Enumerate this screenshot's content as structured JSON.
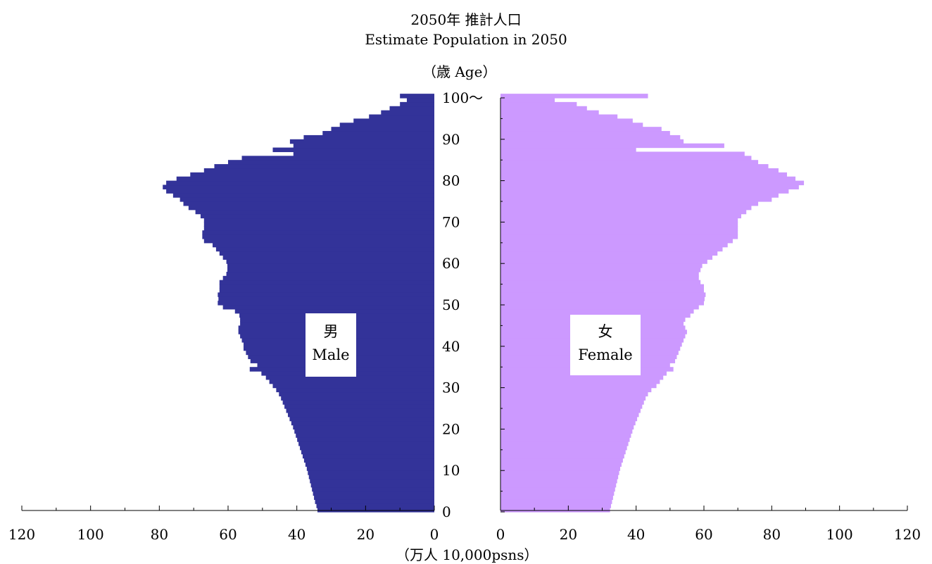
{
  "title": "2050年  推計人口",
  "subtitle": "Estimate Population in 2050",
  "age_axis_label": "（歳  Age）",
  "x_axis_label": "（万人  10,000psns）",
  "male_label_ja": "男",
  "male_label_en": "Male",
  "female_label_ja": "女",
  "female_label_en": "Female",
  "colors": {
    "male": "#333399",
    "female": "#cc99ff",
    "axis": "#000000"
  },
  "chart_data": {
    "type": "bar",
    "orientation": "horizontal-pyramid",
    "age_ticks": [
      "0",
      "10",
      "20",
      "30",
      "40",
      "50",
      "60",
      "70",
      "80",
      "90",
      "100〜"
    ],
    "x_ticks": [
      "120",
      "100",
      "80",
      "60",
      "40",
      "20",
      "0"
    ],
    "xlim": [
      0,
      120
    ],
    "ylim": [
      0,
      100
    ],
    "ages": [
      0,
      1,
      2,
      3,
      4,
      5,
      6,
      7,
      8,
      9,
      10,
      11,
      12,
      13,
      14,
      15,
      16,
      17,
      18,
      19,
      20,
      21,
      22,
      23,
      24,
      25,
      26,
      27,
      28,
      29,
      30,
      31,
      32,
      33,
      34,
      35,
      36,
      37,
      38,
      39,
      40,
      41,
      42,
      43,
      44,
      45,
      46,
      47,
      48,
      49,
      50,
      51,
      52,
      53,
      54,
      55,
      56,
      57,
      58,
      59,
      60,
      61,
      62,
      63,
      64,
      65,
      66,
      67,
      68,
      69,
      70,
      71,
      72,
      73,
      74,
      75,
      76,
      77,
      78,
      79,
      80,
      81,
      82,
      83,
      84,
      85,
      86,
      87,
      88,
      89,
      90,
      91,
      92,
      93,
      94,
      95,
      96,
      97,
      98,
      99,
      100
    ],
    "series": [
      {
        "name": "男",
        "values": [
          34,
          34.3,
          34.7,
          35,
          35.3,
          35.6,
          35.9,
          36.2,
          36.5,
          36.8,
          37.1,
          37.5,
          37.9,
          38.3,
          38.7,
          39.1,
          39.5,
          39.9,
          40.3,
          40.7,
          41.1,
          41.6,
          42.1,
          42.6,
          43.1,
          43.6,
          44.1,
          44.6,
          45.2,
          46,
          47,
          48,
          49,
          50.3,
          53.7,
          51.5,
          53.5,
          54.2,
          54.8,
          55.5,
          55.5,
          56,
          56.5,
          57,
          57,
          56.5,
          56.5,
          56.7,
          58,
          61.5,
          63,
          62.8,
          63,
          62.5,
          62.5,
          62.5,
          61.5,
          60.5,
          60.2,
          60.2,
          60.5,
          61.5,
          62.5,
          63.5,
          64.5,
          67,
          67.5,
          67.5,
          67,
          67,
          67,
          68,
          69.5,
          71.5,
          73,
          74,
          76,
          78,
          79,
          78,
          75,
          71,
          67,
          64,
          60,
          56,
          41,
          47,
          41,
          42,
          38,
          32.5,
          30,
          27.5,
          23.5,
          19,
          15.5,
          13,
          10,
          8,
          10
        ]
      },
      {
        "name": "女",
        "values": [
          32.3,
          32.6,
          32.9,
          33.2,
          33.5,
          33.8,
          34.1,
          34.4,
          34.7,
          35,
          35.3,
          35.7,
          36.1,
          36.5,
          36.9,
          37.3,
          37.7,
          38.1,
          38.5,
          38.9,
          39.3,
          39.8,
          40.3,
          40.8,
          41.3,
          41.8,
          42.3,
          42.8,
          43.5,
          44.5,
          46,
          47,
          48,
          49,
          51,
          50,
          51.5,
          52,
          52.5,
          53,
          53.5,
          54,
          54.5,
          55,
          54.5,
          54,
          54.5,
          56,
          57,
          58.5,
          60,
          60.2,
          60.5,
          60,
          60,
          59,
          58.5,
          58.5,
          59,
          59.5,
          61,
          62.5,
          64,
          65.5,
          67,
          68.5,
          70,
          70,
          70,
          70,
          70,
          71,
          72.5,
          74,
          76,
          80,
          82,
          85,
          88,
          89.5,
          87,
          84.5,
          82,
          79,
          76,
          74,
          72,
          40,
          66,
          54,
          53,
          50,
          47.5,
          42,
          39,
          34.5,
          29,
          25.5,
          22.5,
          16,
          43.5
        ]
      }
    ]
  }
}
